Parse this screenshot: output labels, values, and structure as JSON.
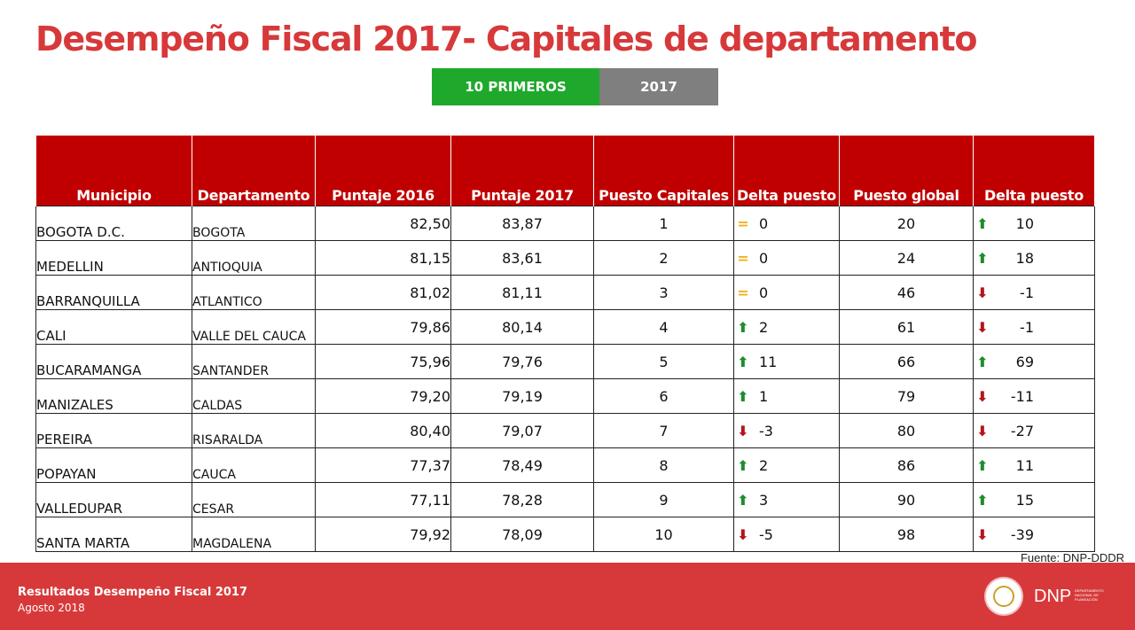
{
  "title": "Desempeño Fiscal 2017- Capitales de departamento",
  "tabs": {
    "primary": "10 PRIMEROS",
    "secondary": "2017"
  },
  "table": {
    "headers": [
      "Municipio",
      "Departamento",
      "Puntaje 2016",
      "Puntaje 2017",
      "Puesto Capitales",
      "Delta puesto",
      "Puesto global",
      "Delta puesto"
    ],
    "rows": [
      [
        "BOGOTA D.C.",
        "BOGOTA",
        "82,50",
        "83,87",
        "1",
        "eq",
        "0",
        "20",
        "up",
        "10"
      ],
      [
        "MEDELLIN",
        "ANTIOQUIA",
        "81,15",
        "83,61",
        "2",
        "eq",
        "0",
        "24",
        "up",
        "18"
      ],
      [
        "BARRANQUILLA",
        "ATLANTICO",
        "81,02",
        "81,11",
        "3",
        "eq",
        "0",
        "46",
        "down",
        "-1"
      ],
      [
        "CALI",
        "VALLE DEL CAUCA",
        "79,86",
        "80,14",
        "4",
        "up",
        "2",
        "61",
        "down",
        "-1"
      ],
      [
        "BUCARAMANGA",
        "SANTANDER",
        "75,96",
        "79,76",
        "5",
        "up",
        "11",
        "66",
        "up",
        "69"
      ],
      [
        "MANIZALES",
        "CALDAS",
        "79,20",
        "79,19",
        "6",
        "up",
        "1",
        "79",
        "down",
        "-11"
      ],
      [
        "PEREIRA",
        "RISARALDA",
        "80,40",
        "79,07",
        "7",
        "down",
        "-3",
        "80",
        "down",
        "-27"
      ],
      [
        "POPAYAN",
        "CAUCA",
        "77,37",
        "78,49",
        "8",
        "up",
        "2",
        "86",
        "up",
        "11"
      ],
      [
        "VALLEDUPAR",
        "CESAR",
        "77,11",
        "78,28",
        "9",
        "up",
        "3",
        "90",
        "up",
        "15"
      ],
      [
        "SANTA MARTA",
        "MAGDALENA",
        "79,92",
        "78,09",
        "10",
        "down",
        "-5",
        "98",
        "down",
        "-39"
      ]
    ]
  },
  "source": "Fuente: DNP-DDDR",
  "footer": {
    "title": "Resultados Desempeño Fiscal 2017",
    "date": "Agosto 2018",
    "logo_text": "DNP",
    "logo_sub": "DEPARTAMENTO NACIONAL DE PLANEACIÓN"
  },
  "colors": {
    "title": "#d7393a",
    "header_bg": "#c00000",
    "tab_green": "#1fa92c",
    "tab_gray": "#7f7f7f",
    "footer_bg": "#d7393a",
    "arrow_up": "#1e8c2f",
    "arrow_down": "#b3141b",
    "equal": "#f2b21c"
  },
  "icons": {
    "up": "arrow-up-icon",
    "down": "arrow-down-icon",
    "eq": "equal-icon"
  }
}
